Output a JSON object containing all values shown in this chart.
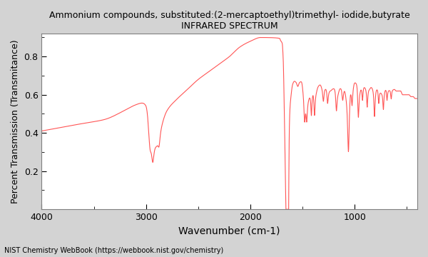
{
  "title_line1": "Ammonium compounds, substituted:(2-mercaptoethyl)trimethyl- iodide,butyrate",
  "title_line2": "INFRARED SPECTRUM",
  "xlabel": "Wavenumber (cm-1)",
  "ylabel": "Percent Transmission (Transmitance)",
  "footnote": "NIST Chemistry WebBook (https://webbook.nist.gov/chemistry)",
  "line_color": "#ff5555",
  "bg_color": "#d3d3d3",
  "plot_bg": "#ffffff",
  "xmin": 4000,
  "xmax": 400,
  "ymin": 0.0,
  "ymax": 0.92,
  "yticks": [
    0.2,
    0.4,
    0.6,
    0.8
  ],
  "xticks": [
    4000,
    3000,
    2000,
    1000
  ]
}
